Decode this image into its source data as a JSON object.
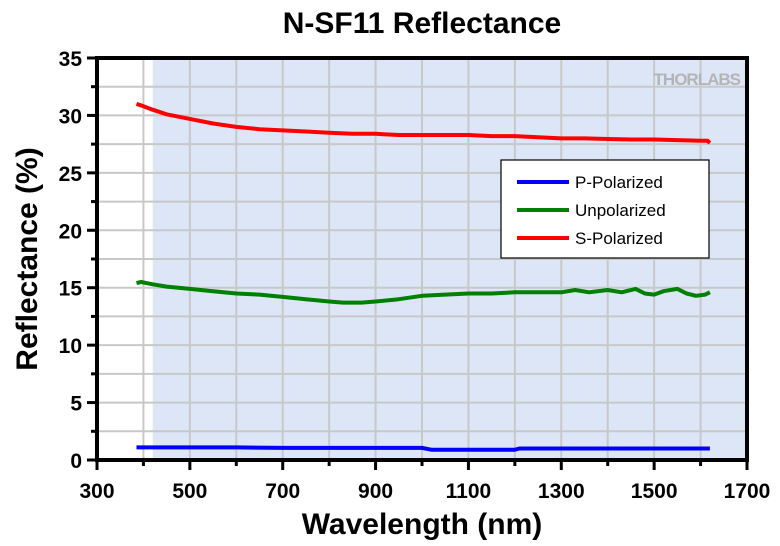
{
  "chart_data": {
    "type": "line",
    "title": "N-SF11 Reflectance",
    "xlabel": "Wavelength (nm)",
    "ylabel": "Reflectance (%)",
    "xlim": [
      300,
      1700
    ],
    "ylim": [
      0,
      35
    ],
    "xticks": [
      300,
      500,
      700,
      900,
      1100,
      1300,
      1500,
      1700
    ],
    "xtick_labels": [
      "300",
      "500",
      "700",
      "900",
      "1100",
      "1300",
      "1500",
      "1700"
    ],
    "x_minor_step": 100,
    "yticks": [
      0,
      5,
      10,
      15,
      20,
      25,
      30,
      35
    ],
    "ytick_labels": [
      "0",
      "5",
      "10",
      "15",
      "20",
      "25",
      "30",
      "35"
    ],
    "y_minor_step": 2.5,
    "grid": true,
    "shaded_region": {
      "x_range": [
        420,
        1700
      ],
      "color": "#dce6f6",
      "meaning": "specified wavelength range"
    },
    "legend_position": "right-middle",
    "watermark": "THORLABS",
    "series": [
      {
        "name": "P-Polarized",
        "color": "#0000ff",
        "x": [
          385,
          450,
          500,
          600,
          700,
          800,
          900,
          1000,
          1020,
          1100,
          1200,
          1210,
          1300,
          1400,
          1500,
          1600,
          1620
        ],
        "y": [
          1.1,
          1.1,
          1.1,
          1.1,
          1.05,
          1.05,
          1.05,
          1.05,
          0.9,
          0.9,
          0.9,
          1.0,
          1.0,
          1.0,
          1.0,
          1.0,
          1.0
        ]
      },
      {
        "name": "Unpolarized",
        "color": "#008000",
        "x": [
          385,
          395,
          420,
          450,
          500,
          550,
          600,
          650,
          700,
          750,
          800,
          830,
          870,
          900,
          950,
          1000,
          1050,
          1100,
          1150,
          1200,
          1250,
          1300,
          1330,
          1360,
          1400,
          1430,
          1460,
          1480,
          1500,
          1520,
          1550,
          1570,
          1590,
          1610,
          1620
        ],
        "y": [
          15.4,
          15.5,
          15.3,
          15.1,
          14.9,
          14.7,
          14.5,
          14.4,
          14.2,
          14.0,
          13.8,
          13.7,
          13.7,
          13.8,
          14.0,
          14.3,
          14.4,
          14.5,
          14.5,
          14.6,
          14.6,
          14.6,
          14.8,
          14.6,
          14.8,
          14.6,
          14.9,
          14.5,
          14.4,
          14.7,
          14.9,
          14.5,
          14.3,
          14.4,
          14.6
        ]
      },
      {
        "name": "S-Polarized",
        "color": "#ff0000",
        "x": [
          385,
          400,
          420,
          450,
          500,
          550,
          600,
          650,
          700,
          750,
          800,
          850,
          900,
          950,
          1000,
          1050,
          1100,
          1150,
          1200,
          1250,
          1300,
          1350,
          1400,
          1450,
          1500,
          1550,
          1600,
          1615,
          1620
        ],
        "y": [
          31.0,
          30.8,
          30.5,
          30.1,
          29.7,
          29.3,
          29.0,
          28.8,
          28.7,
          28.6,
          28.5,
          28.4,
          28.4,
          28.3,
          28.3,
          28.3,
          28.3,
          28.2,
          28.2,
          28.1,
          28.0,
          28.0,
          27.95,
          27.9,
          27.9,
          27.85,
          27.8,
          27.8,
          27.6
        ]
      }
    ]
  }
}
